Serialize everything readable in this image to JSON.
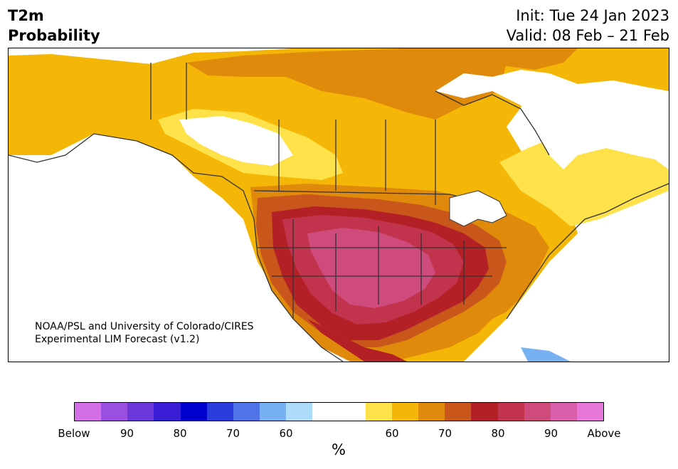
{
  "header": {
    "title_line1": "T2m",
    "title_line2": "Probability",
    "init": "Init: Tue 24 Jan 2023",
    "valid": "Valid: 08 Feb – 21 Feb"
  },
  "credit": {
    "line1": "NOAA/PSL and University of Colorado/CIRES",
    "line2": "Experimental LIM Forecast (v1.2)"
  },
  "colorbar": {
    "colors": [
      "#d370e8",
      "#9a4fe0",
      "#6a37d8",
      "#3a1ed6",
      "#0000cc",
      "#2b3edb",
      "#4f74e8",
      "#78b1f2",
      "#addcfb",
      "#ffffff",
      "#ffffff",
      "#ffe14a",
      "#f4b708",
      "#e08a0c",
      "#c9561b",
      "#b32025",
      "#c2334d",
      "#cf4b7b",
      "#db5eab",
      "#e678da"
    ],
    "tick_labels": [
      "Below",
      "90",
      "80",
      "70",
      "60",
      "60",
      "70",
      "80",
      "90",
      "Above"
    ],
    "unit": "%"
  },
  "map": {
    "region": "North America",
    "legend_colors": {
      "light_yellow": "#ffe14a",
      "yellow": "#f4b708",
      "orange": "#e08a0c",
      "dark_orange": "#c9561b",
      "red": "#b32025",
      "crimson": "#c2334d",
      "pink": "#cf4b7b",
      "light_blue": "#78b1f2"
    }
  }
}
